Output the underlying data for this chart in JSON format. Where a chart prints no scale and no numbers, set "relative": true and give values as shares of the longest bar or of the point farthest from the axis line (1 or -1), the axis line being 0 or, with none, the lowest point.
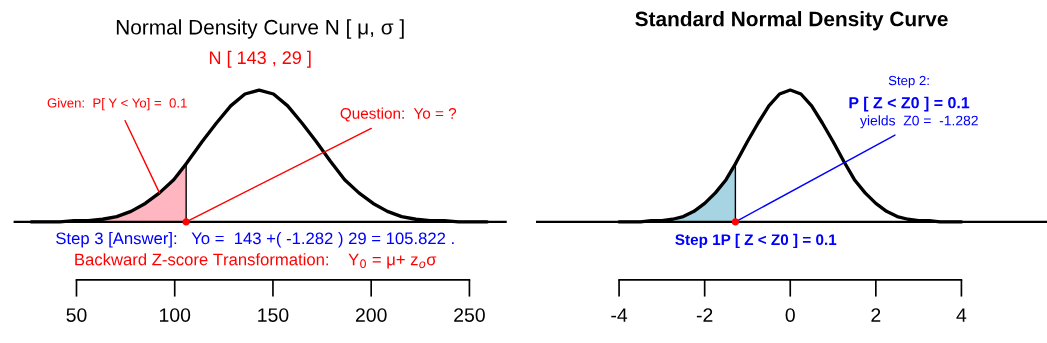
{
  "chart_data": [
    {
      "type": "line",
      "title": "Normal Density Curve N [ μ, σ ]",
      "subtitle": "N [ 143 , 29 ]",
      "relative": true,
      "tick_labels": "x",
      "grid": false,
      "xlim": [
        18,
        269
      ],
      "xticks": [
        50,
        100,
        150,
        200,
        250
      ],
      "series": [
        {
          "type": "area",
          "color": "#ffb6c1",
          "x": [
            27,
            34.25,
            41.5,
            48.75,
            56,
            63.25,
            70.5,
            77.75,
            85,
            92.25,
            99.5,
            105.822
          ],
          "values": [
            0.0,
            0.0,
            0.0,
            0.01,
            0.01,
            0.02,
            0.04,
            0.08,
            0.14,
            0.22,
            0.32,
            0.44
          ]
        },
        {
          "color": "#000000",
          "x": [
            27,
            34.25,
            41.5,
            48.75,
            56,
            63.25,
            70.5,
            77.75,
            85,
            92.25,
            99.5,
            105.822,
            106.75,
            114,
            121.25,
            128.5,
            135.75,
            143,
            150.25,
            157.5,
            164.75,
            172,
            179.25,
            186.5,
            193.75,
            201,
            208.25,
            215.5,
            222.75,
            230,
            237.25,
            244.5,
            251.75,
            259
          ],
          "values": [
            0.0,
            0.0,
            0.0,
            0.01,
            0.01,
            0.02,
            0.04,
            0.08,
            0.14,
            0.22,
            0.32,
            0.44,
            0.46,
            0.61,
            0.75,
            0.88,
            0.97,
            1.0,
            0.97,
            0.88,
            0.75,
            0.61,
            0.46,
            0.32,
            0.22,
            0.14,
            0.08,
            0.04,
            0.02,
            0.01,
            0.01,
            0.0,
            0.0,
            0.0
          ]
        },
        {
          "type": "scatter",
          "color": "#ff0000",
          "x": [
            105.822
          ],
          "values": [
            0
          ]
        }
      ],
      "ref_lines": [
        {
          "axis": "y",
          "value": 0,
          "color": "#000000"
        }
      ],
      "annotations": [
        {
          "text": "Given:  P[ Y < Yo] =  0.1",
          "x": 92.25,
          "y": 0.22
        },
        {
          "text": "Question:  Yo = ?",
          "x": 105.822,
          "y": 0
        },
        "Step 3 [Answer]:   Yo =  143 +( -1.282 ) 29 = 105.822 .",
        "Backward Z-score Transformation:    Y$_{0}$ = μ+ z$_{o}$σ"
      ]
    },
    {
      "type": "line",
      "title": "Standard Normal Density Curve",
      "relative": true,
      "tick_labels": "x",
      "grid": false,
      "xlim": [
        -5.94,
        6.0
      ],
      "xticks": [
        -4,
        -2,
        0,
        2,
        4
      ],
      "series": [
        {
          "type": "area",
          "color": "#a6d4e2",
          "x": [
            -4,
            -3.75,
            -3.5,
            -3.25,
            -3,
            -2.75,
            -2.5,
            -2.25,
            -2,
            -1.75,
            -1.5,
            -1.282
          ],
          "values": [
            0.0,
            0.0,
            0.0,
            0.01,
            0.01,
            0.02,
            0.04,
            0.08,
            0.14,
            0.22,
            0.32,
            0.44
          ]
        },
        {
          "color": "#000000",
          "x": [
            -4,
            -3.75,
            -3.5,
            -3.25,
            -3,
            -2.75,
            -2.5,
            -2.25,
            -2,
            -1.75,
            -1.5,
            -1.282,
            -1.25,
            -1,
            -0.75,
            -0.5,
            -0.25,
            0,
            0.25,
            0.5,
            0.75,
            1,
            1.25,
            1.5,
            1.75,
            2,
            2.25,
            2.5,
            2.75,
            3,
            3.25,
            3.5,
            3.75,
            4
          ],
          "values": [
            0.0,
            0.0,
            0.0,
            0.01,
            0.01,
            0.02,
            0.04,
            0.08,
            0.14,
            0.22,
            0.32,
            0.44,
            0.46,
            0.61,
            0.75,
            0.88,
            0.97,
            1.0,
            0.97,
            0.88,
            0.75,
            0.61,
            0.46,
            0.32,
            0.22,
            0.14,
            0.08,
            0.04,
            0.02,
            0.01,
            0.01,
            0.0,
            0.0,
            0.0
          ]
        },
        {
          "type": "scatter",
          "color": "#ff0000",
          "x": [
            -1.282
          ],
          "values": [
            0
          ]
        }
      ],
      "ref_lines": [
        {
          "axis": "y",
          "value": 0,
          "color": "#000000"
        }
      ],
      "annotations": [
        "Step 2:",
        "P [ Z < Z0 ] = 0.1",
        {
          "text": "yields  Z0 =  -1.282",
          "x": -1.282,
          "y": 0
        },
        "Step 1P [ Z < Z0 ] = 0.1"
      ]
    }
  ]
}
